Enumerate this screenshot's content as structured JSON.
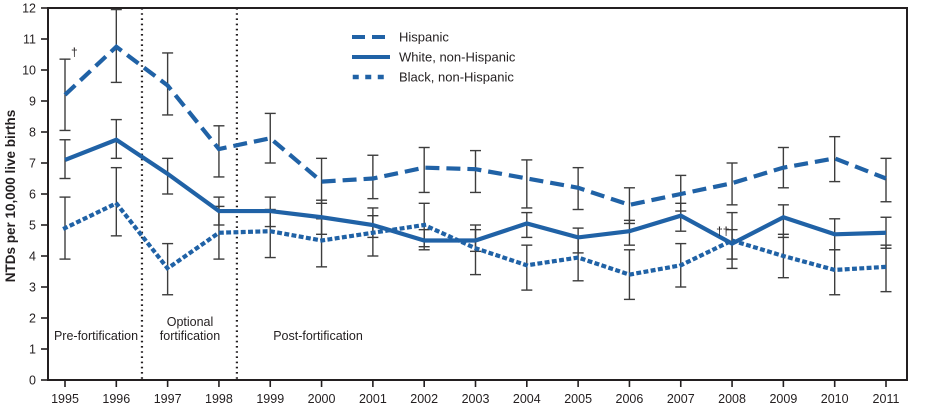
{
  "colors": {
    "line": "#2062a6",
    "error_bar": "#3d3d3d",
    "axis": "#231f20",
    "background": "#ffffff"
  },
  "regions": {
    "pre": "Pre-fortification",
    "optional": [
      "Optional",
      "fortification"
    ],
    "post": "Post-fortification"
  },
  "chart_data": {
    "type": "line",
    "title": "",
    "xlabel": "",
    "ylabel": "NTDs per 10,000 live births",
    "ylim": [
      0,
      12
    ],
    "yticks": [
      0,
      1,
      2,
      3,
      4,
      5,
      6,
      7,
      8,
      9,
      10,
      11,
      12
    ],
    "x": [
      1995,
      1996,
      1997,
      1998,
      1999,
      2000,
      2001,
      2002,
      2003,
      2004,
      2005,
      2006,
      2007,
      2008,
      2009,
      2010,
      2011
    ],
    "grid": false,
    "legend_position": "top-center",
    "error_bars": true,
    "boundaries": [
      {
        "x": 1996.5,
        "meaning": "start optional fortification"
      },
      {
        "x": 1998.35,
        "meaning": "start post-fortification"
      }
    ],
    "series": [
      {
        "id": "hispanic",
        "name": "Hispanic",
        "style": "dashed",
        "values": [
          9.2,
          10.75,
          9.5,
          7.45,
          7.8,
          6.4,
          6.5,
          6.85,
          6.8,
          6.5,
          6.2,
          5.65,
          6.0,
          6.35,
          6.85,
          7.15,
          6.5
        ],
        "err_lo": [
          8.05,
          9.6,
          8.55,
          6.55,
          7.0,
          5.7,
          5.85,
          6.05,
          6.05,
          5.55,
          5.5,
          5.05,
          5.45,
          5.65,
          6.2,
          6.4,
          5.75
        ],
        "err_hi": [
          10.35,
          11.95,
          10.55,
          8.2,
          8.6,
          7.15,
          7.25,
          7.5,
          7.4,
          7.1,
          6.85,
          6.2,
          6.6,
          7.0,
          7.5,
          7.85,
          7.15
        ]
      },
      {
        "id": "white-non-hispanic",
        "name": "White, non-Hispanic",
        "style": "solid",
        "values": [
          7.1,
          7.75,
          6.65,
          5.45,
          5.45,
          5.25,
          5.0,
          4.5,
          4.5,
          5.05,
          4.6,
          4.8,
          5.3,
          4.4,
          5.25,
          4.7,
          4.75
        ],
        "err_lo": [
          6.5,
          7.15,
          6.0,
          5.0,
          4.95,
          4.7,
          4.6,
          4.2,
          4.15,
          4.6,
          4.1,
          4.35,
          4.8,
          3.9,
          4.6,
          4.2,
          4.25
        ],
        "err_hi": [
          7.75,
          8.4,
          7.15,
          5.9,
          5.9,
          5.8,
          5.55,
          4.85,
          4.85,
          5.4,
          4.9,
          5.15,
          5.7,
          4.85,
          5.65,
          5.2,
          5.25
        ]
      },
      {
        "id": "black-non-hispanic",
        "name": "Black, non-Hispanic",
        "style": "dotted",
        "values": [
          4.9,
          5.7,
          3.6,
          4.75,
          4.8,
          4.5,
          4.75,
          5.0,
          4.25,
          3.7,
          3.95,
          3.4,
          3.7,
          4.5,
          4.0,
          3.55,
          3.65
        ],
        "err_lo": [
          3.9,
          4.65,
          2.75,
          3.9,
          3.95,
          3.65,
          4.0,
          4.3,
          3.4,
          2.9,
          3.2,
          2.6,
          3.0,
          3.6,
          3.3,
          2.75,
          2.85
        ],
        "err_hi": [
          5.9,
          6.85,
          4.4,
          5.6,
          5.5,
          5.2,
          5.3,
          5.7,
          5.0,
          4.35,
          4.6,
          4.2,
          4.4,
          5.4,
          4.7,
          4.2,
          4.35
        ]
      }
    ],
    "annotations": [
      {
        "text": "†",
        "year": 1995,
        "value": 10.45,
        "dx": 6
      },
      {
        "text": "††",
        "year": 2008,
        "value": 4.67,
        "dx": -16
      }
    ]
  }
}
